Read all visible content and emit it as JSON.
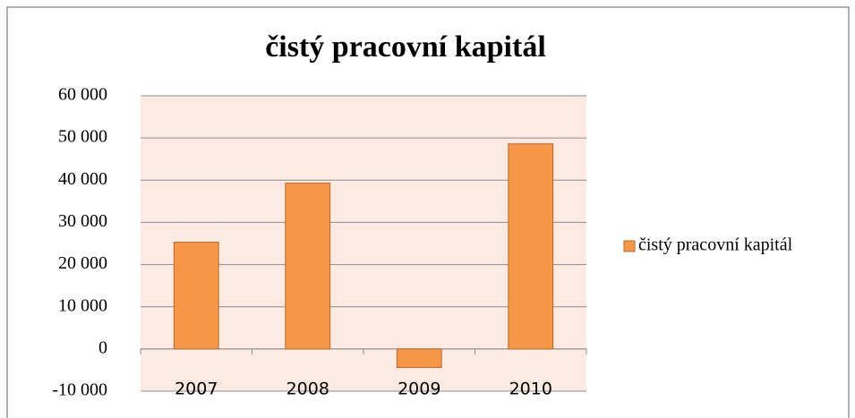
{
  "chart_data": {
    "type": "bar",
    "title": "čistý pracovní kapitál",
    "categories": [
      "2007",
      "2008",
      "2009",
      "2010"
    ],
    "series": [
      {
        "name": "čistý pracovní kapitál",
        "color": "#f79646",
        "values": [
          25300,
          39300,
          -4400,
          48600
        ]
      }
    ],
    "ylim": [
      -10000,
      60000
    ],
    "yticks": [
      {
        "value": -10000,
        "label": "-10 000"
      },
      0,
      {
        "value": 10000,
        "label": "10 000"
      },
      {
        "value": 20000,
        "label": "20 000"
      },
      {
        "value": 30000,
        "label": "30 000"
      },
      {
        "value": 40000,
        "label": "40 000"
      },
      {
        "value": 50000,
        "label": "50 000"
      },
      {
        "value": 60000,
        "label": "60 000"
      }
    ],
    "grid": true,
    "legend": "right"
  }
}
